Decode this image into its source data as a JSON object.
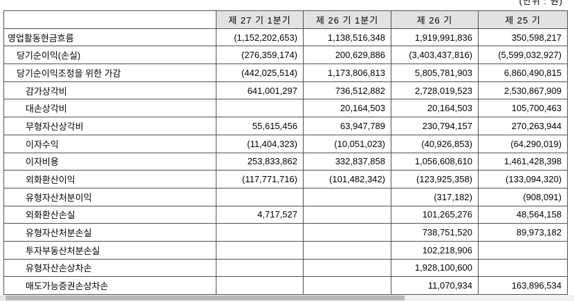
{
  "unit_note": "(단위 : 원)",
  "colors": {
    "header_bg": "#e2e2e2",
    "border": "#4f4f4f",
    "scrollbar_track": "#f1f1f1",
    "scrollbar_thumb": "#b9b9b9"
  },
  "table": {
    "columns": [
      "",
      "제 27 기 1분기",
      "제 26 기 1분기",
      "제 26 기",
      "제 25 기"
    ],
    "rows": [
      {
        "label": "영업활동현금흐름",
        "indent": 0,
        "values": [
          "(1,152,202,653)",
          "1,138,516,348",
          "1,919,991,836",
          "350,598,217"
        ]
      },
      {
        "label": "당기순이익(손실)",
        "indent": 1,
        "values": [
          "(276,359,174)",
          "200,629,886",
          "(3,403,437,816)",
          "(5,599,032,927)"
        ]
      },
      {
        "label": "당기순이익조정을 위한 가감",
        "indent": 1,
        "values": [
          "(442,025,514)",
          "1,173,806,813",
          "5,805,781,903",
          "6,860,490,815"
        ]
      },
      {
        "label": "감가상각비",
        "indent": 2,
        "values": [
          "641,001,297",
          "736,512,882",
          "2,728,019,523",
          "2,530,867,909"
        ]
      },
      {
        "label": "대손상각비",
        "indent": 2,
        "values": [
          "",
          "20,164,503",
          "20,164,503",
          "105,700,463"
        ]
      },
      {
        "label": "무형자산상각비",
        "indent": 2,
        "values": [
          "55,615,456",
          "63,947,789",
          "230,794,157",
          "270,263,944"
        ]
      },
      {
        "label": "이자수익",
        "indent": 2,
        "values": [
          "(11,404,323)",
          "(10,051,023)",
          "(40,926,853)",
          "(64,290,019)"
        ]
      },
      {
        "label": "이자비용",
        "indent": 2,
        "values": [
          "253,833,862",
          "332,837,858",
          "1,056,608,610",
          "1,461,428,398"
        ]
      },
      {
        "label": "외화환산이익",
        "indent": 2,
        "values": [
          "(117,771,716)",
          "(101,482,342)",
          "(123,925,358)",
          "(133,094,320)"
        ]
      },
      {
        "label": "유형자산처분이익",
        "indent": 2,
        "values": [
          "",
          "",
          "(317,182)",
          "(908,091)"
        ]
      },
      {
        "label": "외화환산손실",
        "indent": 2,
        "values": [
          "4,717,527",
          "",
          "101,265,276",
          "48,564,158"
        ]
      },
      {
        "label": "유형자산처분손실",
        "indent": 2,
        "values": [
          "",
          "",
          "738,751,520",
          "89,973,182"
        ]
      },
      {
        "label": "투자부동산처분손실",
        "indent": 2,
        "values": [
          "",
          "",
          "102,218,906",
          ""
        ]
      },
      {
        "label": "유형자산손상차손",
        "indent": 2,
        "values": [
          "",
          "",
          "1,928,100,600",
          ""
        ]
      },
      {
        "label": "매도가능증권손상차손",
        "indent": 2,
        "values": [
          "",
          "",
          "11,070,934",
          "163,896,534"
        ]
      }
    ]
  }
}
